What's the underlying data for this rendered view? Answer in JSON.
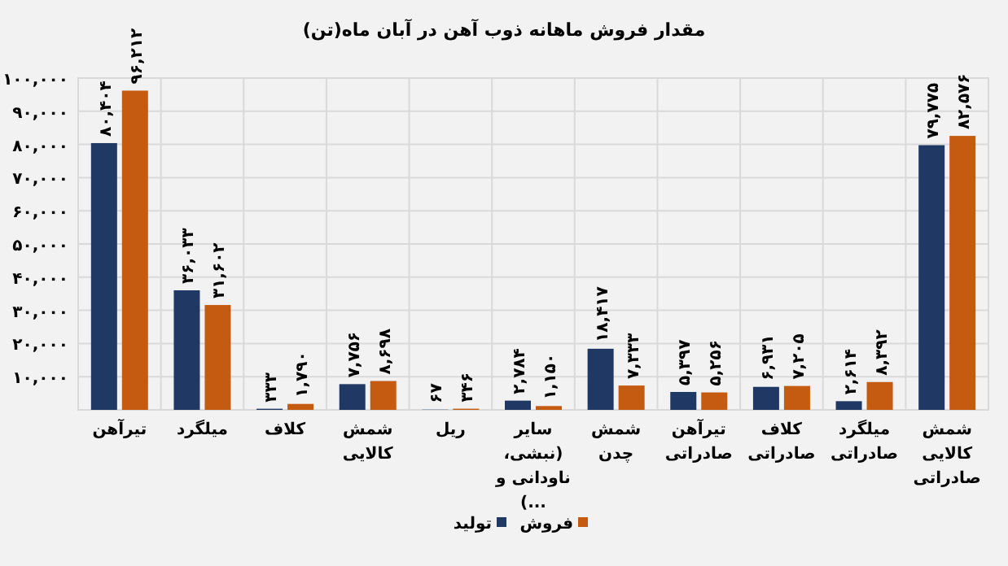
{
  "chart_data": {
    "type": "bar",
    "title": "مقدار فروش  ماهانه ذوب آهن در آبان ماه(تن)",
    "categories": [
      "تیرآهن",
      "میلگرد",
      "کلاف",
      "شمش کالایی",
      "ریل",
      "سایر (نبشی، ناودانی و ...)",
      "شمش چدن",
      "تیرآهن صادراتی",
      "کلاف صادراتی",
      "میلگرد صادراتی",
      "شمش کالایی صادراتی"
    ],
    "series": [
      {
        "name": "تولید",
        "color": "#1f3864",
        "values": [
          80404,
          36033,
          333,
          7756,
          67,
          2784,
          18417,
          5397,
          6931,
          2614,
          79775
        ],
        "value_labels": [
          "۸۰,۴۰۴",
          "۳۶,۰۳۳",
          "۳۳۳",
          "۷,۷۵۶",
          "۶۷",
          "۲,۷۸۴",
          "۱۸,۴۱۷",
          "۵,۳۹۷",
          "۶,۹۳۱",
          "۲,۶۱۴",
          "۷۹,۷۷۵"
        ]
      },
      {
        "name": "فروش",
        "color": "#c55a11",
        "values": [
          96212,
          31602,
          1790,
          8698,
          346,
          1150,
          7333,
          5256,
          7205,
          8392,
          82576
        ],
        "value_labels": [
          "۹۶,۲۱۲",
          "۳۱,۶۰۲",
          "۱,۷۹۰",
          "۸,۶۹۸",
          "۳۴۶",
          "۱,۱۵۰",
          "۷,۳۳۳",
          "۵,۲۵۶",
          "۷,۲۰۵",
          "۸,۳۹۲",
          "۸۲,۵۷۶"
        ]
      }
    ],
    "ylim": [
      0,
      100000
    ],
    "yticks": [
      {
        "value": 0,
        "label": null
      },
      {
        "value": 10000,
        "label": "۱۰,۰۰۰"
      },
      {
        "value": 20000,
        "label": "۲۰,۰۰۰"
      },
      {
        "value": 30000,
        "label": "۳۰,۰۰۰"
      },
      {
        "value": 40000,
        "label": "۴۰,۰۰۰"
      },
      {
        "value": 50000,
        "label": "۵۰,۰۰۰"
      },
      {
        "value": 60000,
        "label": "۶۰,۰۰۰"
      },
      {
        "value": 70000,
        "label": "۷۰,۰۰۰"
      },
      {
        "value": 80000,
        "label": "۸۰,۰۰۰"
      },
      {
        "value": 90000,
        "label": "۹۰,۰۰۰"
      },
      {
        "value": 100000,
        "label": "۱۰۰,۰۰۰"
      }
    ],
    "grid": true,
    "legend": "bottom"
  }
}
